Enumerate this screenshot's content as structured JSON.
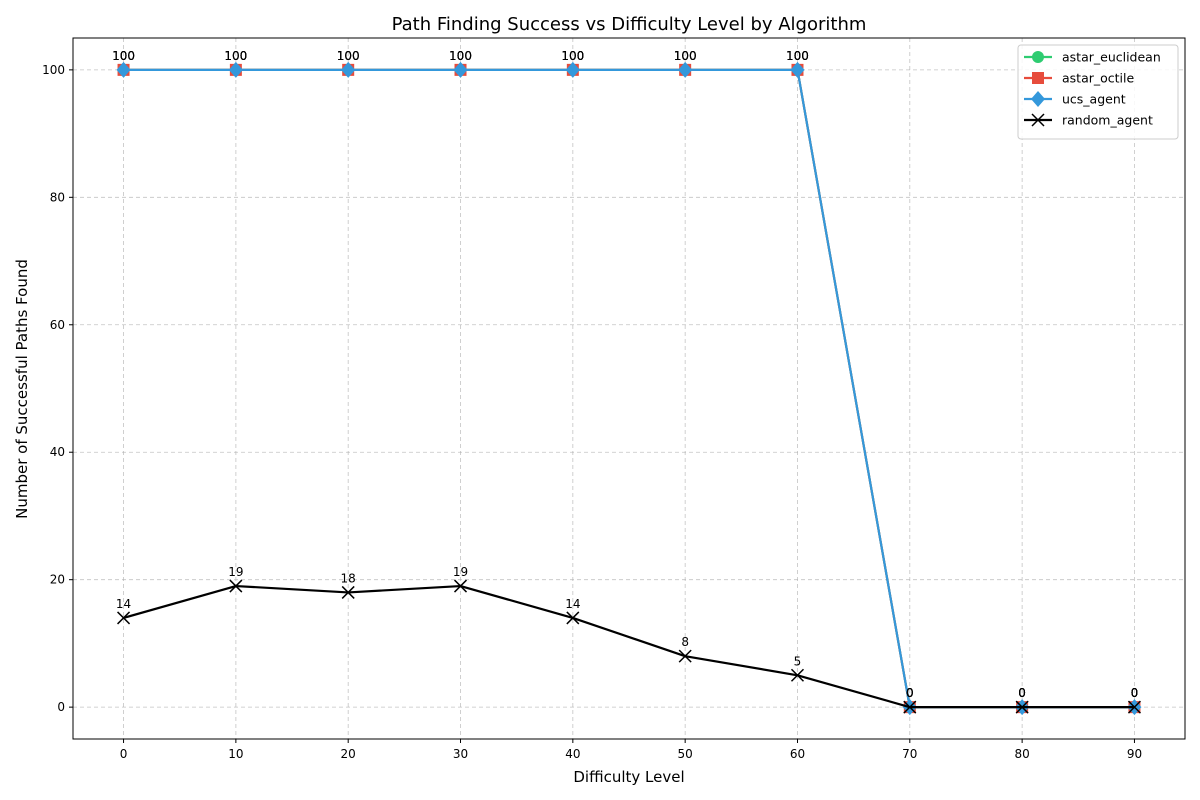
{
  "chart_data": {
    "type": "line",
    "title": "Path Finding Success vs Difficulty Level by Algorithm",
    "xlabel": "Difficulty Level",
    "ylabel": "Number of Successful Paths Found",
    "x": [
      0,
      10,
      20,
      30,
      40,
      50,
      60,
      70,
      80,
      90
    ],
    "xlim": [
      -4.5,
      94.5
    ],
    "ylim": [
      -5,
      105
    ],
    "xticks": [
      0,
      10,
      20,
      30,
      40,
      50,
      60,
      70,
      80,
      90
    ],
    "yticks": [
      0,
      20,
      40,
      60,
      80,
      100
    ],
    "grid": true,
    "legend_position": "top-right",
    "series": [
      {
        "name": "astar_euclidean",
        "color": "#2ecc71",
        "marker": "circle",
        "values": [
          100,
          100,
          100,
          100,
          100,
          100,
          100,
          0,
          0,
          0
        ]
      },
      {
        "name": "astar_octile",
        "color": "#e74c3c",
        "marker": "square",
        "values": [
          100,
          100,
          100,
          100,
          100,
          100,
          100,
          0,
          0,
          0
        ]
      },
      {
        "name": "ucs_agent",
        "color": "#3498db",
        "marker": "diamond",
        "values": [
          100,
          100,
          100,
          100,
          100,
          100,
          100,
          0,
          0,
          0
        ]
      },
      {
        "name": "random_agent",
        "color": "#000000",
        "marker": "x",
        "values": [
          14,
          19,
          18,
          19,
          14,
          8,
          5,
          0,
          0,
          0
        ]
      }
    ]
  }
}
